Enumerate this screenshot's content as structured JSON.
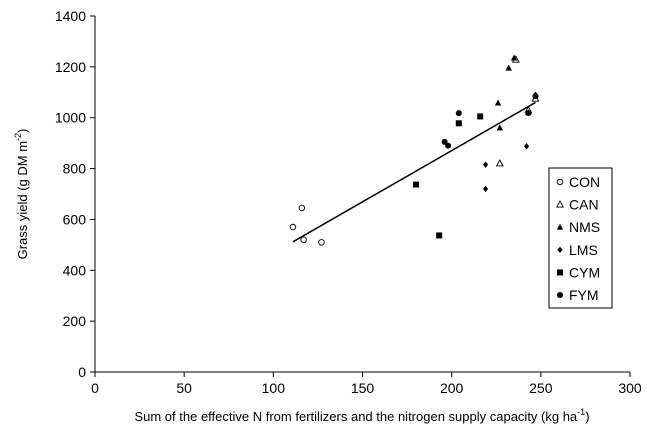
{
  "chart_data": {
    "type": "scatter",
    "title": "",
    "xlabel": "Sum of the effective N from fertilizers and the nitrogen supply capacity (kg ha",
    "xlabel_sup": "-1",
    "xlabel_end": ")",
    "ylabel": "Grass yield (g DM m",
    "ylabel_sup": "-2",
    "ylabel_end": ")",
    "xlim": [
      0,
      300
    ],
    "ylim": [
      0,
      1400
    ],
    "xticks": [
      "0",
      "50",
      "100",
      "150",
      "200",
      "250",
      "300"
    ],
    "yticks": [
      "0",
      "200",
      "400",
      "600",
      "800",
      "1000",
      "1200",
      "1400"
    ],
    "grid": false,
    "legend_position": "right",
    "series": [
      {
        "name": "CON",
        "marker": "circle-open",
        "points": [
          [
            111,
            570
          ],
          [
            116,
            645
          ],
          [
            117,
            520
          ],
          [
            127,
            510
          ]
        ]
      },
      {
        "name": "CAN",
        "marker": "triangle-open",
        "points": [
          [
            227,
            820
          ],
          [
            236,
            1228
          ],
          [
            243,
            1030
          ],
          [
            247,
            1075
          ]
        ]
      },
      {
        "name": "NMS",
        "marker": "triangle-filled",
        "points": [
          [
            226,
            1058
          ],
          [
            227,
            960
          ],
          [
            232,
            1195
          ],
          [
            235,
            1235
          ],
          [
            243,
            1020
          ]
        ]
      },
      {
        "name": "LMS",
        "marker": "diamond-filled",
        "points": [
          [
            219,
            815
          ],
          [
            219,
            720
          ],
          [
            242,
            888
          ],
          [
            247,
            1090
          ]
        ]
      },
      {
        "name": "CYM",
        "marker": "square-filled",
        "points": [
          [
            180,
            737
          ],
          [
            193,
            537
          ],
          [
            204,
            978
          ],
          [
            216,
            1005
          ]
        ]
      },
      {
        "name": "FYM",
        "marker": "circle-filled",
        "points": [
          [
            196,
            905
          ],
          [
            198,
            890
          ],
          [
            204,
            1018
          ],
          [
            243,
            1018
          ],
          [
            247,
            1085
          ]
        ]
      }
    ],
    "trendline": {
      "x": [
        111,
        247
      ],
      "y": [
        512,
        1060
      ]
    }
  }
}
